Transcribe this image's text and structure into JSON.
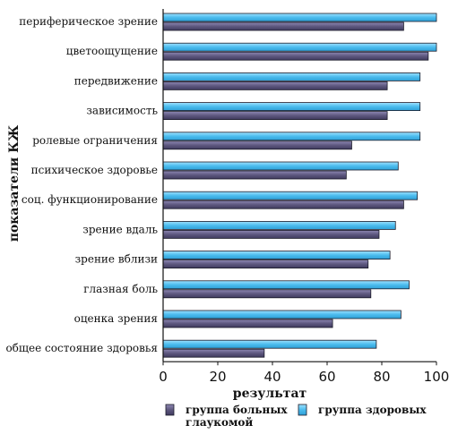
{
  "chart_data": {
    "type": "bar",
    "orientation": "horizontal",
    "categories": [
      "периферическое зрение",
      "цветоощущение",
      "передвижение",
      "зависимость",
      "ролевые ограничения",
      "психическое здоровье",
      "соц. функционирование",
      "зрение вдаль",
      "зрение вблизи",
      "глазная боль",
      "оценка зрения",
      "общее состояние здоровья"
    ],
    "series": [
      {
        "name": "группа здоровых",
        "color": "#5bc3f0",
        "values": [
          100,
          100,
          94,
          94,
          94,
          86,
          93,
          85,
          83,
          90,
          87,
          78
        ]
      },
      {
        "name": "группа больных глаукомой",
        "color": "#6b6591",
        "values": [
          88,
          97,
          82,
          82,
          69,
          67,
          88,
          79,
          75,
          76,
          62,
          37
        ]
      }
    ],
    "xlabel": "результат",
    "ylabel": "показатели КЖ",
    "xlim": [
      0,
      100
    ],
    "xticks": [
      0,
      20,
      40,
      60,
      80,
      100
    ],
    "grid": false,
    "legend": {
      "position": "bottom",
      "items": [
        {
          "series": 1,
          "lines": [
            "группа больных",
            "глаукомой"
          ]
        },
        {
          "series": 0,
          "lines": [
            "группа здоровых"
          ]
        }
      ]
    }
  }
}
